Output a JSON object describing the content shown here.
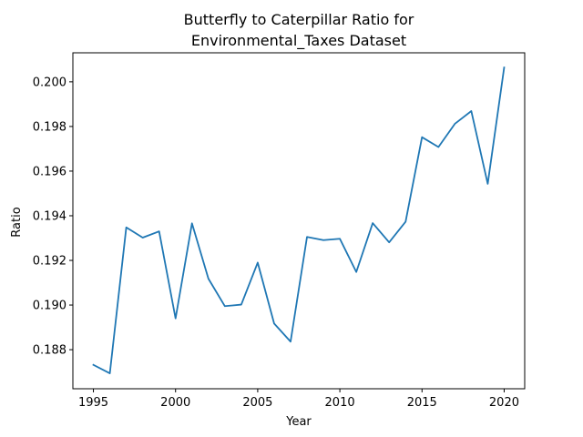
{
  "chart_data": {
    "type": "line",
    "title_lines": [
      "Butterfly to Caterpillar Ratio for",
      "Environmental_Taxes Dataset"
    ],
    "xlabel": "Year",
    "ylabel": "Ratio",
    "xlim": [
      1993.75,
      2021.25
    ],
    "ylim": [
      0.18625,
      0.2013
    ],
    "x_ticks": [
      1995,
      2000,
      2005,
      2010,
      2015,
      2020
    ],
    "x_tick_labels": [
      "1995",
      "2000",
      "2005",
      "2010",
      "2015",
      "2020"
    ],
    "y_ticks": [
      0.188,
      0.19,
      0.192,
      0.194,
      0.196,
      0.198,
      0.2
    ],
    "y_tick_labels": [
      "0.188",
      "0.190",
      "0.192",
      "0.194",
      "0.196",
      "0.198",
      "0.200"
    ],
    "grid": false,
    "line_color": "#1f77b4",
    "series": [
      {
        "x": [
          1995,
          1996,
          1997,
          1998,
          1999,
          2000,
          2001,
          2002,
          2003,
          2004,
          2005,
          2006,
          2007,
          2008,
          2009,
          2010,
          2011,
          2012,
          2013,
          2014,
          2015,
          2016,
          2017,
          2018,
          2019,
          2020
        ],
        "values": [
          0.18732,
          0.18694,
          0.19348,
          0.19302,
          0.1933,
          0.1894,
          0.19366,
          0.19118,
          0.18995,
          0.19002,
          0.1919,
          0.18917,
          0.18836,
          0.19305,
          0.19291,
          0.19297,
          0.19148,
          0.19367,
          0.19281,
          0.19373,
          0.19752,
          0.19708,
          0.19812,
          0.19869,
          0.19543,
          0.20064
        ]
      }
    ]
  }
}
